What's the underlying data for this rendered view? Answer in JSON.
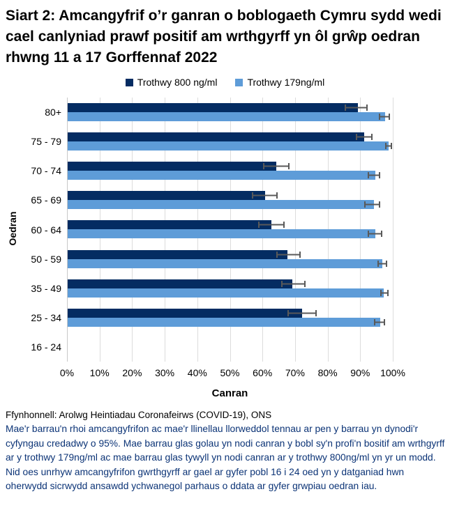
{
  "title": "Siart 2: Amcangyfrif o’r ganran o boblogaeth Cymru sydd wedi cael canlyniad prawf positif am wrthgyrff yn ôl grŵp oedran rhwng 11 a 17 Gorffennaf 2022",
  "legend": [
    {
      "label": "Trothwy 800 ng/ml",
      "color": "#042c62"
    },
    {
      "label": "Trothwy 179ng/ml",
      "color": "#5e9cd8"
    }
  ],
  "chart_data": {
    "type": "bar",
    "orientation": "horizontal",
    "title": "Siart 2: Amcangyfrif o’r ganran o boblogaeth Cymru sydd wedi cael canlyniad prawf positif am wrthgyrff yn ôl grŵp oedran rhwng 11 a 17 Gorffennaf 2022",
    "categories": [
      "80+",
      "75 - 79",
      "70 - 74",
      "65 - 69",
      "60 - 64",
      "50 - 59",
      "35 - 49",
      "25 - 34",
      "16 - 24"
    ],
    "series": [
      {
        "name": "Trothwy 800 ng/ml",
        "color": "#042c62",
        "values": [
          89,
          91,
          64,
          60.5,
          62.5,
          67.5,
          69,
          72,
          null
        ],
        "ci_low": [
          85,
          88.5,
          60,
          56.5,
          58.5,
          64,
          65.5,
          67.5,
          null
        ],
        "ci_high": [
          92,
          93.5,
          68,
          64.5,
          66.5,
          71.5,
          73,
          76.5,
          null
        ]
      },
      {
        "name": "Trothwy 179ng/ml",
        "color": "#5e9cd8",
        "values": [
          97.5,
          98.5,
          94.5,
          94,
          94.5,
          96.5,
          97,
          96,
          null
        ],
        "ci_low": [
          95.5,
          97.5,
          92,
          91,
          92,
          95,
          96,
          94,
          null
        ],
        "ci_high": [
          99,
          99.5,
          96,
          96,
          96.5,
          98,
          98.5,
          97.5,
          null
        ]
      }
    ],
    "xlabel": "Canran",
    "ylabel": "Oedran",
    "x_ticks": [
      "0%",
      "10%",
      "20%",
      "30%",
      "40%",
      "50%",
      "60%",
      "70%",
      "80%",
      "90%",
      "100%"
    ],
    "xlim": [
      0,
      100
    ],
    "grid": true,
    "legend_position": "top",
    "error_bars": "95% credible interval",
    "error_bar_color": "#595959"
  },
  "footer": {
    "source": "Ffynhonnell: Arolwg Heintiadau Coronafeirws (COVID-19), ONS",
    "note": "Mae'r barrau'n rhoi amcangyfrifon ac mae'r llinellau llorweddol tennau ar pen y barrau yn dynodi'r cyfyngau credadwy o 95%. Mae barrau glas golau yn nodi canran y bobl sy'n profi'n bositif am wrthgyrff ar y trothwy 179ng/ml ac mae barrau glas tywyll yn nodi canran ar y trothwy 800ng/ml yn yr un modd. Nid oes unrhyw amcangyfrifon gwrthgyrff ar gael ar gyfer pobl 16 i 24 oed yn y datganiad hwn oherwydd sicrwydd ansawdd ychwanegol parhaus o ddata ar gyfer grwpiau oedran iau."
  }
}
